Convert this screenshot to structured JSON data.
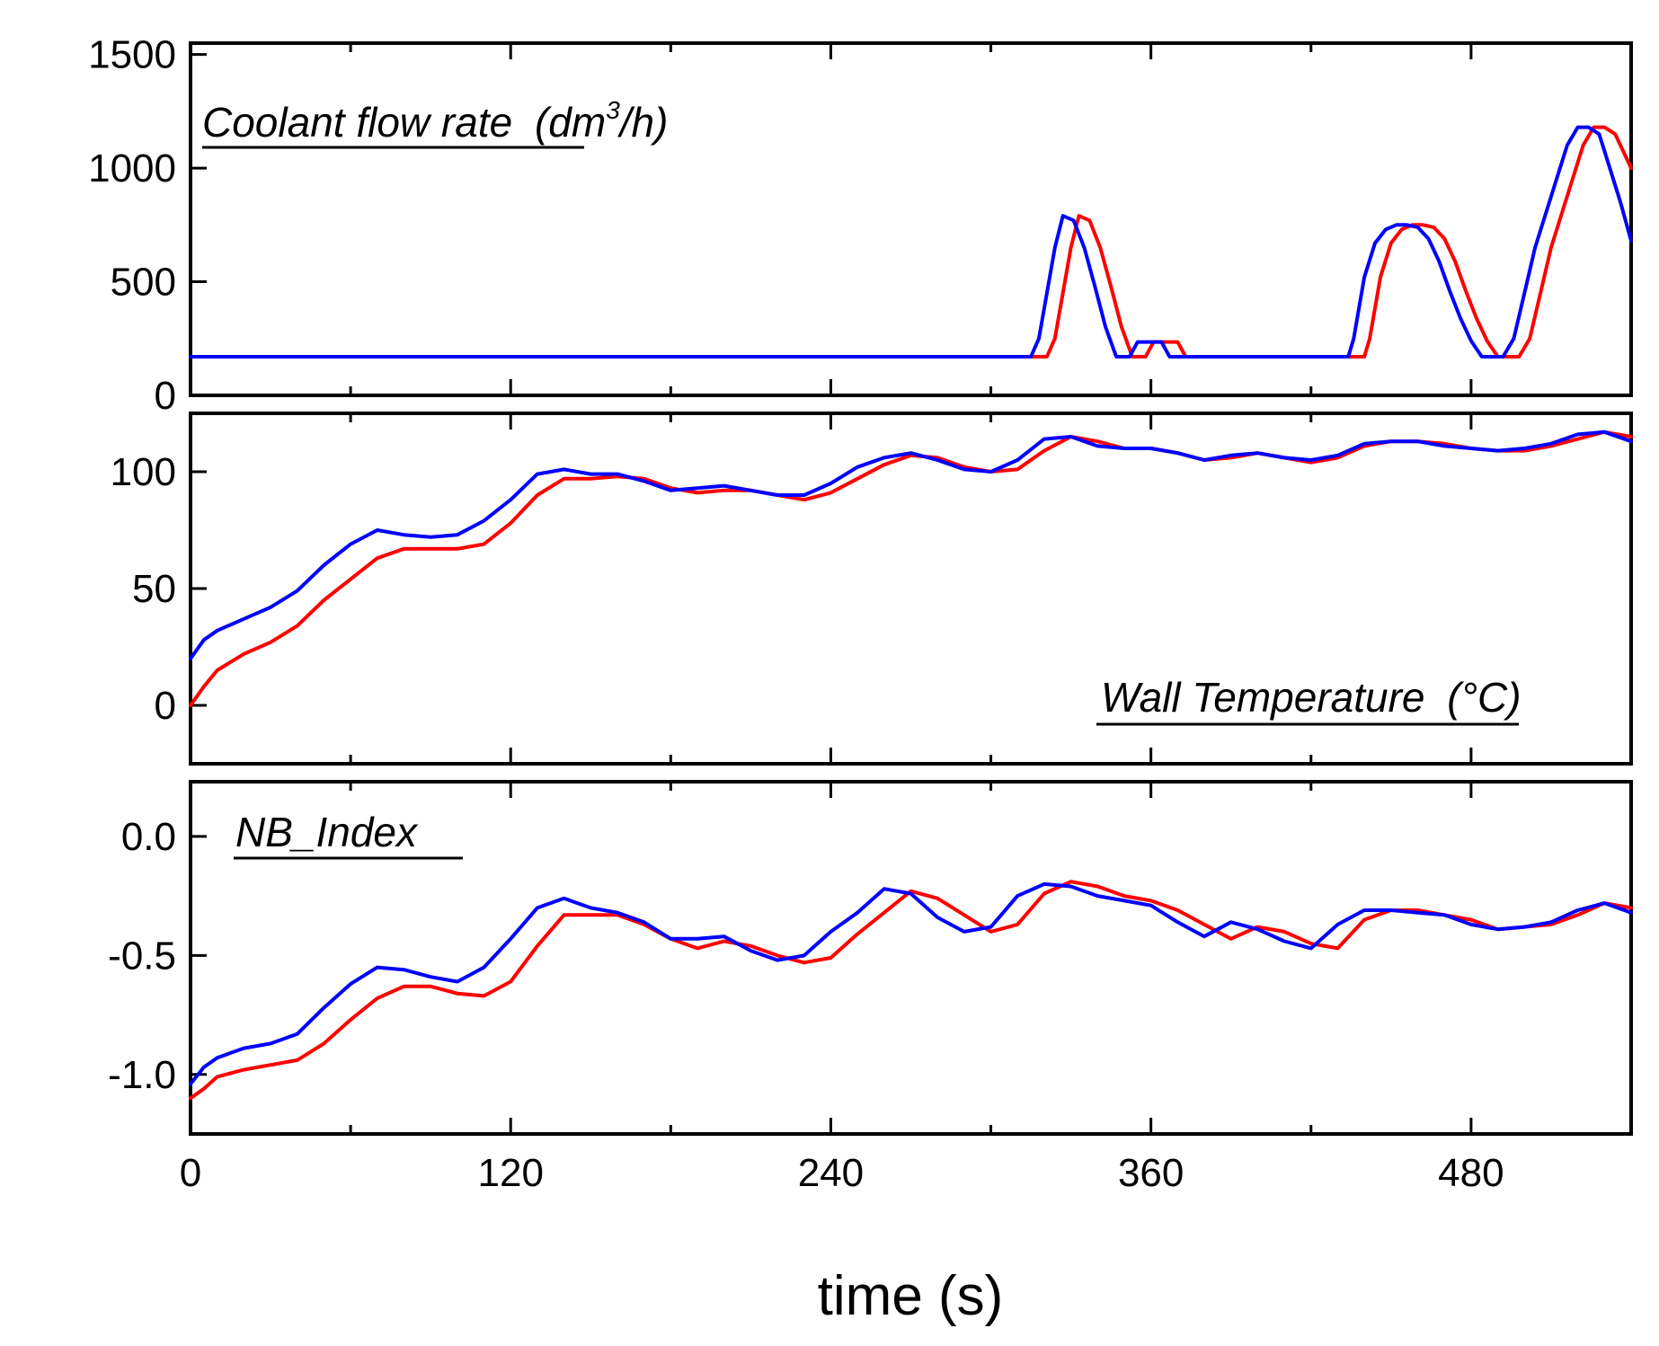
{
  "chart_data": [
    {
      "type": "line",
      "panel": "top",
      "title": "Coolant flow rate",
      "title_unit": "(dm",
      "title_unit_sup": "3",
      "title_unit_end": "/h)",
      "xlim": [
        0,
        540
      ],
      "ylim": [
        0,
        1550
      ],
      "yticks": [
        0,
        500,
        1000,
        1500
      ],
      "ytick_labels": [
        "0",
        "500",
        "1000",
        "1500"
      ],
      "series": [
        {
          "name": "series-1",
          "color": "#ff0000",
          "x": [
            0,
            321,
            324,
            330,
            333,
            337,
            341,
            345,
            349,
            353,
            358,
            361,
            364,
            367,
            370,
            373,
            376,
            380,
            440,
            442,
            446,
            450,
            454,
            458,
            462,
            466,
            470,
            474,
            478,
            482,
            486,
            490,
            494,
            498,
            502,
            506,
            510,
            514,
            518,
            522,
            526,
            530,
            534,
            538,
            540
          ],
          "y": [
            170,
            170,
            250,
            650,
            790,
            770,
            650,
            480,
            300,
            170,
            170,
            235,
            235,
            235,
            235,
            170,
            170,
            170,
            170,
            250,
            520,
            670,
            730,
            750,
            750,
            740,
            690,
            590,
            460,
            340,
            240,
            170,
            170,
            170,
            250,
            450,
            650,
            800,
            950,
            1100,
            1180,
            1180,
            1150,
            1050,
            1000
          ]
        },
        {
          "name": "series-2",
          "color": "#0000ff",
          "x": [
            0,
            315,
            318,
            324,
            327,
            331,
            335,
            339,
            343,
            347,
            352,
            355,
            358,
            361,
            364,
            367,
            370,
            374,
            434,
            436,
            440,
            444,
            448,
            452,
            456,
            460,
            464,
            468,
            472,
            476,
            480,
            484,
            488,
            492,
            496,
            500,
            504,
            508,
            512,
            516,
            520,
            524,
            528,
            532,
            536,
            540
          ],
          "y": [
            170,
            170,
            250,
            650,
            790,
            770,
            650,
            480,
            300,
            170,
            170,
            235,
            235,
            235,
            235,
            170,
            170,
            170,
            170,
            250,
            520,
            670,
            730,
            750,
            750,
            740,
            690,
            590,
            460,
            340,
            240,
            170,
            170,
            170,
            250,
            450,
            650,
            800,
            950,
            1100,
            1180,
            1180,
            1150,
            1000,
            850,
            680
          ]
        }
      ]
    },
    {
      "type": "line",
      "panel": "middle",
      "title": "Wall Temperature",
      "title_unit": "(°C)",
      "xlim": [
        0,
        540
      ],
      "ylim": [
        -25,
        125
      ],
      "yticks": [
        0,
        50,
        100
      ],
      "ytick_labels": [
        "0",
        "50",
        "100"
      ],
      "series": [
        {
          "name": "series-1",
          "color": "#ff0000",
          "x": [
            0,
            5,
            10,
            20,
            30,
            40,
            50,
            60,
            70,
            80,
            90,
            100,
            110,
            120,
            130,
            140,
            150,
            160,
            170,
            180,
            190,
            200,
            210,
            220,
            230,
            240,
            250,
            260,
            270,
            280,
            290,
            300,
            310,
            320,
            330,
            340,
            350,
            360,
            370,
            380,
            390,
            400,
            410,
            420,
            430,
            440,
            450,
            460,
            470,
            480,
            490,
            500,
            510,
            520,
            530,
            540
          ],
          "y": [
            0,
            8,
            15,
            22,
            27,
            34,
            45,
            54,
            63,
            67,
            67,
            67,
            69,
            78,
            90,
            97,
            97,
            98,
            97,
            93,
            91,
            92,
            92,
            90,
            88,
            91,
            97,
            103,
            107,
            106,
            102,
            100,
            101,
            109,
            115,
            113,
            110,
            110,
            108,
            105,
            106,
            108,
            106,
            104,
            106,
            111,
            113,
            113,
            112,
            110,
            109,
            109,
            111,
            114,
            117,
            115
          ]
        },
        {
          "name": "series-2",
          "color": "#0000ff",
          "x": [
            0,
            5,
            10,
            20,
            30,
            40,
            50,
            60,
            70,
            80,
            90,
            100,
            110,
            120,
            130,
            140,
            150,
            160,
            170,
            180,
            190,
            200,
            210,
            220,
            230,
            240,
            250,
            260,
            270,
            280,
            290,
            300,
            310,
            320,
            330,
            340,
            350,
            360,
            370,
            380,
            390,
            400,
            410,
            420,
            430,
            440,
            450,
            460,
            470,
            480,
            490,
            500,
            510,
            520,
            530,
            540
          ],
          "y": [
            20,
            28,
            32,
            37,
            42,
            49,
            60,
            69,
            75,
            73,
            72,
            73,
            79,
            88,
            99,
            101,
            99,
            99,
            96,
            92,
            93,
            94,
            92,
            90,
            90,
            95,
            102,
            106,
            108,
            105,
            101,
            100,
            105,
            114,
            115,
            111,
            110,
            110,
            108,
            105,
            107,
            108,
            106,
            105,
            107,
            112,
            113,
            113,
            111,
            110,
            109,
            110,
            112,
            116,
            117,
            113
          ]
        }
      ]
    },
    {
      "type": "line",
      "panel": "bottom",
      "title": "NB_Index",
      "xlim": [
        0,
        540
      ],
      "ylim": [
        -1.25,
        0.23
      ],
      "yticks": [
        -1.0,
        -0.5,
        0.0
      ],
      "ytick_labels": [
        "-1.0",
        "-0.5",
        "0.0"
      ],
      "xticks": [
        0,
        120,
        240,
        360,
        480
      ],
      "xtick_labels": [
        "0",
        "120",
        "240",
        "360",
        "480"
      ],
      "xminor_ticks": [
        60,
        180,
        300,
        420
      ],
      "xlabel": "time (s)",
      "series": [
        {
          "name": "series-1",
          "color": "#ff0000",
          "x": [
            0,
            5,
            10,
            20,
            30,
            40,
            50,
            60,
            70,
            80,
            90,
            100,
            110,
            120,
            130,
            140,
            150,
            160,
            170,
            180,
            190,
            200,
            210,
            220,
            230,
            240,
            250,
            260,
            270,
            280,
            290,
            300,
            310,
            320,
            330,
            340,
            350,
            360,
            370,
            380,
            390,
            400,
            410,
            420,
            430,
            440,
            450,
            460,
            470,
            480,
            490,
            500,
            510,
            520,
            530,
            540
          ],
          "y": [
            -1.1,
            -1.06,
            -1.01,
            -0.98,
            -0.96,
            -0.94,
            -0.87,
            -0.77,
            -0.68,
            -0.63,
            -0.63,
            -0.66,
            -0.67,
            -0.61,
            -0.46,
            -0.33,
            -0.33,
            -0.33,
            -0.37,
            -0.43,
            -0.47,
            -0.44,
            -0.46,
            -0.5,
            -0.53,
            -0.51,
            -0.41,
            -0.32,
            -0.23,
            -0.26,
            -0.33,
            -0.4,
            -0.37,
            -0.24,
            -0.19,
            -0.21,
            -0.25,
            -0.27,
            -0.31,
            -0.37,
            -0.43,
            -0.38,
            -0.4,
            -0.45,
            -0.47,
            -0.35,
            -0.31,
            -0.31,
            -0.33,
            -0.35,
            -0.39,
            -0.38,
            -0.37,
            -0.33,
            -0.28,
            -0.3
          ]
        },
        {
          "name": "series-2",
          "color": "#0000ff",
          "x": [
            0,
            5,
            10,
            20,
            30,
            40,
            50,
            60,
            70,
            80,
            90,
            100,
            110,
            120,
            130,
            140,
            150,
            160,
            170,
            180,
            190,
            200,
            210,
            220,
            230,
            240,
            250,
            260,
            270,
            280,
            290,
            300,
            310,
            320,
            330,
            340,
            350,
            360,
            370,
            380,
            390,
            400,
            410,
            420,
            430,
            440,
            450,
            460,
            470,
            480,
            490,
            500,
            510,
            520,
            530,
            540
          ],
          "y": [
            -1.04,
            -0.97,
            -0.93,
            -0.89,
            -0.87,
            -0.83,
            -0.72,
            -0.62,
            -0.55,
            -0.56,
            -0.59,
            -0.61,
            -0.55,
            -0.43,
            -0.3,
            -0.26,
            -0.3,
            -0.32,
            -0.36,
            -0.43,
            -0.43,
            -0.42,
            -0.48,
            -0.52,
            -0.5,
            -0.4,
            -0.32,
            -0.22,
            -0.24,
            -0.34,
            -0.4,
            -0.38,
            -0.25,
            -0.2,
            -0.21,
            -0.25,
            -0.27,
            -0.29,
            -0.36,
            -0.42,
            -0.36,
            -0.39,
            -0.44,
            -0.47,
            -0.37,
            -0.31,
            -0.31,
            -0.32,
            -0.33,
            -0.37,
            -0.39,
            -0.38,
            -0.36,
            -0.31,
            -0.28,
            -0.32
          ]
        }
      ]
    }
  ]
}
